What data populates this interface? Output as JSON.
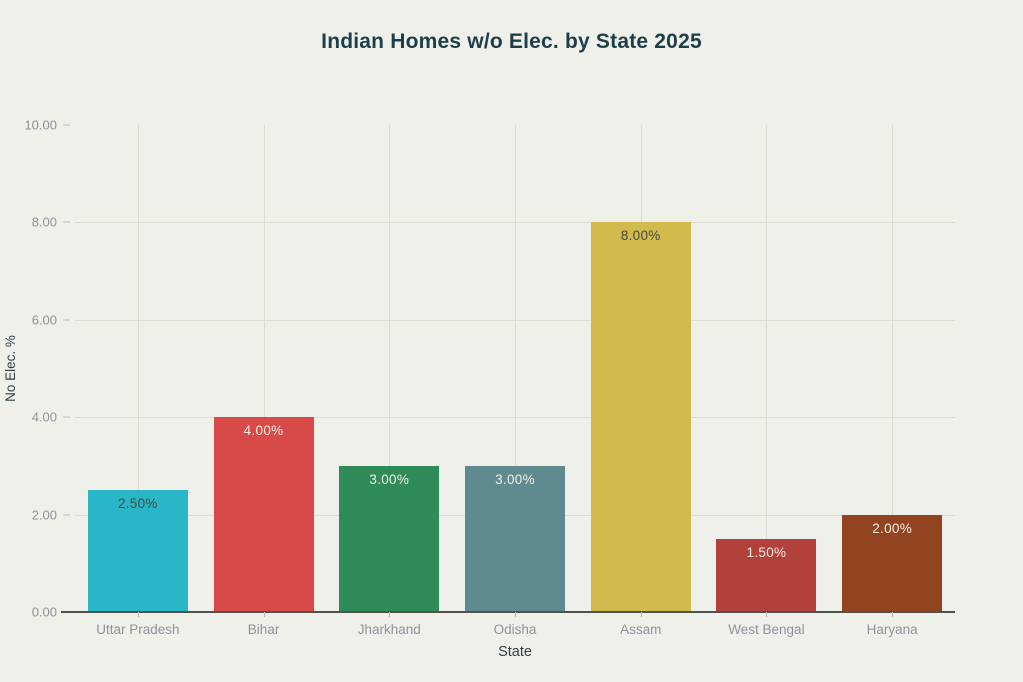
{
  "colors": {
    "bg": "#f0f0ea",
    "title": "#1c3f4a",
    "tick": "#8e939b",
    "axistitle": "#2f3e46",
    "grid": "#dedcd2",
    "axisline": "#53514b",
    "tickmark": "#bcbcb4"
  },
  "chart_data": {
    "type": "bar",
    "title": "Indian Homes w/o Elec. by State 2025",
    "xlabel": "State",
    "ylabel": "No Elec. %",
    "categories": [
      "Uttar Pradesh",
      "Bihar",
      "Jharkhand",
      "Odisha",
      "Assam",
      "West Bengal",
      "Haryana"
    ],
    "values": [
      2.5,
      4.0,
      3.0,
      3.0,
      8.0,
      1.5,
      2.0
    ],
    "value_labels": [
      "2.50%",
      "4.00%",
      "3.00%",
      "3.00%",
      "8.00%",
      "1.50%",
      "2.00%"
    ],
    "bar_colors": [
      "#29b6c9",
      "#d84a47",
      "#2f8b57",
      "#5e8a90",
      "#d2ba4c",
      "#b2413c",
      "#92431f"
    ],
    "label_text_colors": [
      "#474a3f",
      "#f4f0e7",
      "#f4f0e7",
      "#f4f0e7",
      "#474a3f",
      "#f4f0e7",
      "#f4f0e7"
    ],
    "ylim": [
      0,
      10
    ],
    "yticks": [
      "0.00",
      "2.00",
      "4.00",
      "6.00",
      "8.00",
      "10.00"
    ],
    "grid": true,
    "legend": false
  }
}
